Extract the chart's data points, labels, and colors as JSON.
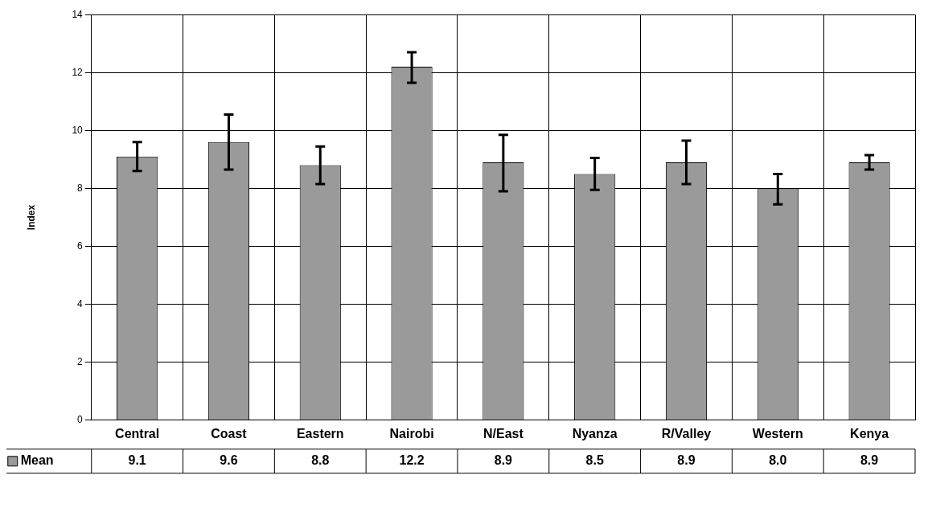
{
  "chart_data": {
    "type": "bar",
    "ylabel": "Index",
    "categories": [
      "Central",
      "Coast",
      "Eastern",
      "Nairobi",
      "N/East",
      "Nyanza",
      "R/Valley",
      "Western",
      "Kenya"
    ],
    "series": [
      {
        "name": "Mean",
        "color": "#9a9a9a",
        "values": [
          9.1,
          9.6,
          8.8,
          12.2,
          8.9,
          8.5,
          8.9,
          8.0,
          8.9
        ],
        "value_labels": [
          "9.1",
          "9.6",
          "8.8",
          "12.2",
          "8.9",
          "8.5",
          "8.9",
          "8.0",
          "8.9"
        ],
        "errors": [
          [
            8.6,
            9.6
          ],
          [
            8.65,
            10.55
          ],
          [
            8.15,
            9.45
          ],
          [
            11.65,
            12.7
          ],
          [
            7.9,
            9.85
          ],
          [
            7.95,
            9.05
          ],
          [
            8.15,
            9.65
          ],
          [
            7.45,
            8.5
          ],
          [
            8.65,
            9.15
          ]
        ]
      }
    ],
    "ylim": [
      0,
      14
    ],
    "yticks": [
      0,
      2,
      4,
      6,
      8,
      10,
      12,
      14
    ],
    "grid": true,
    "legend": "bottom"
  }
}
